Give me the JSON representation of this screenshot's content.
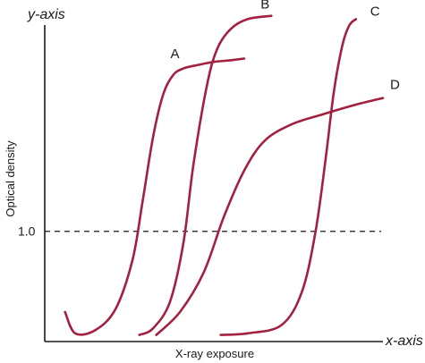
{
  "chart_data": {
    "type": "line",
    "title": "",
    "x_axis_name": "x-axis",
    "y_axis_name": "y-axis",
    "xlabel": "X-ray exposure",
    "ylabel": "Optical density",
    "xlim": [
      0,
      10
    ],
    "ylim": [
      0,
      10
    ],
    "y_ticks": [
      {
        "value": 3.35,
        "label": "1.0"
      }
    ],
    "reference_line": {
      "y": 3.35,
      "style": "dashed"
    },
    "line_color": "#a3203f",
    "grid": false,
    "series": [
      {
        "name": "A",
        "x": [
          0.6,
          0.9,
          1.5,
          2.1,
          2.6,
          2.9,
          3.2,
          3.5,
          3.8,
          4.1,
          4.5,
          5.0,
          5.5,
          5.9
        ],
        "y": [
          0.9,
          0.25,
          0.35,
          1.0,
          2.5,
          4.3,
          6.2,
          7.5,
          8.1,
          8.3,
          8.4,
          8.5,
          8.55,
          8.6
        ]
      },
      {
        "name": "B",
        "x": [
          2.8,
          3.2,
          3.7,
          4.1,
          4.4,
          4.8,
          5.1,
          5.5,
          6.0,
          6.7
        ],
        "y": [
          0.2,
          0.4,
          1.2,
          3.0,
          5.4,
          7.8,
          8.9,
          9.5,
          9.8,
          9.9
        ]
      },
      {
        "name": "C",
        "x": [
          5.2,
          6.0,
          7.0,
          7.6,
          8.0,
          8.3,
          8.55,
          8.8,
          9.0,
          9.2
        ],
        "y": [
          0.2,
          0.25,
          0.5,
          1.5,
          3.3,
          5.5,
          7.6,
          9.0,
          9.6,
          9.8
        ]
      },
      {
        "name": "D",
        "x": [
          3.3,
          4.0,
          4.7,
          5.3,
          5.9,
          6.5,
          7.3,
          8.2,
          9.2,
          10.0
        ],
        "y": [
          0.2,
          0.9,
          2.1,
          3.8,
          5.2,
          6.1,
          6.6,
          6.9,
          7.2,
          7.4
        ]
      }
    ]
  }
}
